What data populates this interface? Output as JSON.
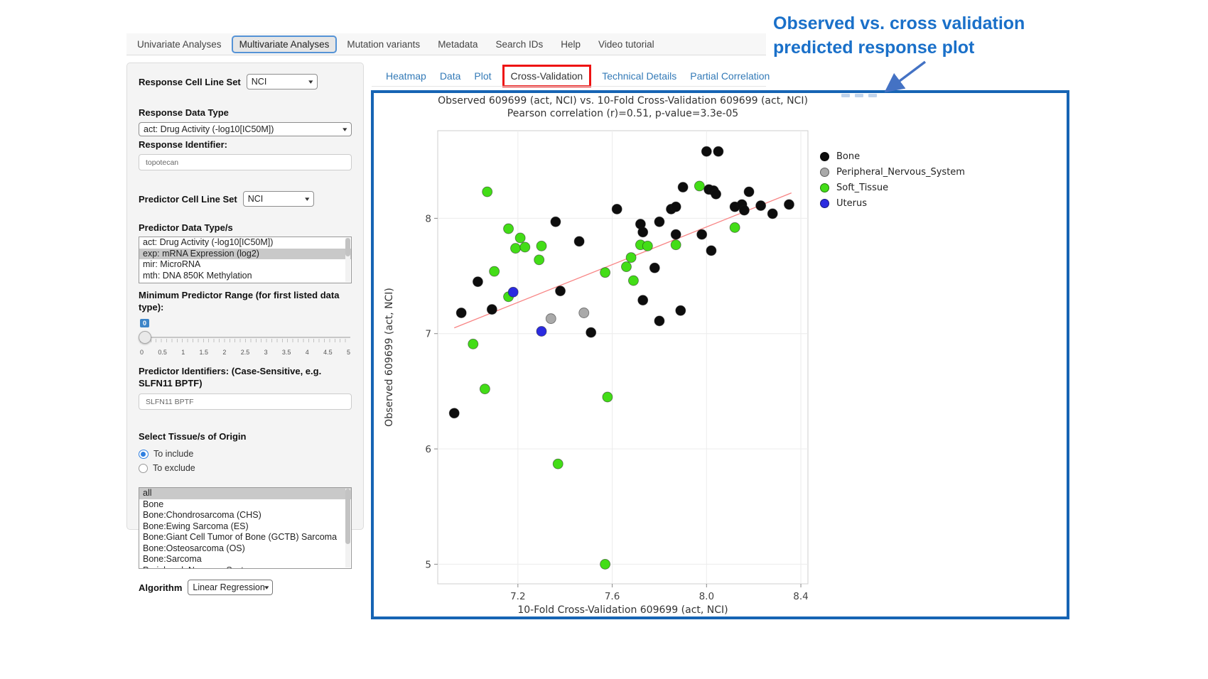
{
  "nav": {
    "tabs": [
      {
        "label": "Univariate Analyses"
      },
      {
        "label": "Multivariate Analyses"
      },
      {
        "label": "Mutation variants"
      },
      {
        "label": "Metadata"
      },
      {
        "label": "Search IDs"
      },
      {
        "label": "Help"
      },
      {
        "label": "Video tutorial"
      }
    ],
    "active": "Multivariate Analyses"
  },
  "sidebar": {
    "response_cell_line_set": {
      "label": "Response Cell Line Set",
      "value": "NCI"
    },
    "response_data_type": {
      "label": "Response Data Type",
      "value": "act: Drug Activity (-log10[IC50M])"
    },
    "response_identifier": {
      "label": "Response Identifier:",
      "value": "topotecan"
    },
    "predictor_cell_line_set": {
      "label": "Predictor Cell Line Set",
      "value": "NCI"
    },
    "predictor_data_types": {
      "label": "Predictor Data Type/s",
      "options": [
        "act: Drug Activity (-log10[IC50M])",
        "exp: mRNA Expression (log2)",
        "mir: MicroRNA",
        "mth: DNA 850K Methylation"
      ],
      "selected": "exp: mRNA Expression (log2)"
    },
    "min_predictor_range": {
      "label": "Minimum Predictor Range (for first listed data type):",
      "value": "0",
      "tick_labels": [
        "0",
        "0.5",
        "1",
        "1.5",
        "2",
        "2.5",
        "3",
        "3.5",
        "4",
        "4.5",
        "5"
      ]
    },
    "predictor_identifiers": {
      "label": "Predictor Identifiers: (Case-Sensitive, e.g. SLFN11 BPTF)",
      "value": "SLFN11 BPTF"
    },
    "tissue_origin": {
      "label": "Select Tissue/s of Origin",
      "radios": [
        {
          "label": "To include",
          "selected": true
        },
        {
          "label": "To exclude",
          "selected": false
        }
      ],
      "options": [
        "all",
        "Bone",
        "Bone:Chondrosarcoma (CHS)",
        "Bone:Ewing Sarcoma (ES)",
        "Bone:Giant Cell Tumor of Bone (GCTB) Sarcoma",
        "Bone:Osteosarcoma (OS)",
        "Bone:Sarcoma",
        "Peripheral_Nervous_System"
      ],
      "selected": "all"
    },
    "algorithm": {
      "label": "Algorithm",
      "value": "Linear Regression"
    }
  },
  "main": {
    "tabs": [
      {
        "label": "Heatmap"
      },
      {
        "label": "Data"
      },
      {
        "label": "Plot"
      },
      {
        "label": "Cross-Validation"
      },
      {
        "label": "Technical Details"
      },
      {
        "label": "Partial Correlation"
      }
    ],
    "active": "Cross-Validation"
  },
  "annotation": {
    "line1": "Observed vs. cross validation",
    "line2": "predicted response plot"
  },
  "chart_data": {
    "type": "scatter",
    "title": "Observed 609699 (act, NCI) vs. 10-Fold Cross-Validation 609699 (act, NCI)",
    "subtitle": "Pearson correlation (r)=0.51, p-value=3.3e-05",
    "xlabel": "10-Fold Cross-Validation 609699 (act, NCI)",
    "ylabel": "Observed 609699 (act, NCI)",
    "xlim": [
      6.86,
      8.43
    ],
    "ylim": [
      4.83,
      8.76
    ],
    "xticks": [
      7.2,
      7.6,
      8.0,
      8.4
    ],
    "yticks": [
      5,
      6,
      7,
      8
    ],
    "grid": true,
    "legend_position": "right",
    "trend_line": {
      "x1": 6.93,
      "y1": 7.05,
      "x2": 8.36,
      "y2": 8.22,
      "color": "#f88585"
    },
    "series": [
      {
        "name": "Bone",
        "color": "#0d0d0d",
        "points": [
          [
            6.93,
            6.31
          ],
          [
            6.96,
            7.18
          ],
          [
            7.03,
            7.45
          ],
          [
            7.09,
            7.21
          ],
          [
            7.36,
            7.97
          ],
          [
            7.46,
            7.8
          ],
          [
            7.38,
            7.37
          ],
          [
            7.51,
            7.01
          ],
          [
            7.62,
            8.08
          ],
          [
            7.72,
            7.95
          ],
          [
            7.73,
            7.88
          ],
          [
            7.8,
            7.97
          ],
          [
            7.78,
            7.57
          ],
          [
            7.73,
            7.29
          ],
          [
            7.87,
            7.86
          ],
          [
            7.85,
            8.08
          ],
          [
            7.87,
            8.1
          ],
          [
            7.9,
            8.27
          ],
          [
            7.98,
            7.86
          ],
          [
            8.0,
            8.58
          ],
          [
            8.05,
            8.58
          ],
          [
            8.01,
            8.25
          ],
          [
            8.03,
            8.24
          ],
          [
            8.04,
            8.21
          ],
          [
            8.18,
            8.23
          ],
          [
            8.12,
            8.1
          ],
          [
            8.15,
            8.12
          ],
          [
            8.16,
            8.07
          ],
          [
            8.23,
            8.11
          ],
          [
            8.35,
            8.12
          ],
          [
            8.28,
            8.04
          ],
          [
            8.02,
            7.72
          ],
          [
            7.8,
            7.11
          ],
          [
            7.89,
            7.2
          ]
        ]
      },
      {
        "name": "Peripheral_Nervous_System",
        "color": "#a9a9a9",
        "points": [
          [
            7.34,
            7.13
          ],
          [
            7.48,
            7.18
          ]
        ]
      },
      {
        "name": "Soft_Tissue",
        "color": "#43dd17",
        "points": [
          [
            7.07,
            8.23
          ],
          [
            7.16,
            7.91
          ],
          [
            7.21,
            7.83
          ],
          [
            7.19,
            7.74
          ],
          [
            7.23,
            7.75
          ],
          [
            7.3,
            7.76
          ],
          [
            7.29,
            7.64
          ],
          [
            7.1,
            7.54
          ],
          [
            7.16,
            7.32
          ],
          [
            7.01,
            6.91
          ],
          [
            7.06,
            6.52
          ],
          [
            7.37,
            5.87
          ],
          [
            7.58,
            6.45
          ],
          [
            7.57,
            5.0
          ],
          [
            7.57,
            7.53
          ],
          [
            7.66,
            7.58
          ],
          [
            7.68,
            7.66
          ],
          [
            7.72,
            7.77
          ],
          [
            7.75,
            7.76
          ],
          [
            7.87,
            7.77
          ],
          [
            7.69,
            7.46
          ],
          [
            7.97,
            8.28
          ],
          [
            8.12,
            7.92
          ]
        ]
      },
      {
        "name": "Uterus",
        "color": "#2b2be0",
        "points": [
          [
            7.18,
            7.36
          ],
          [
            7.3,
            7.02
          ]
        ]
      }
    ]
  },
  "colors": {
    "link_blue": "#337ab7",
    "panel_border_blue": "#1664b4",
    "highlight_red": "#ee1212",
    "callout_blue": "#1a70c9",
    "arrow_blue": "#4472c4",
    "slider_badge_blue": "#3d85c8"
  }
}
